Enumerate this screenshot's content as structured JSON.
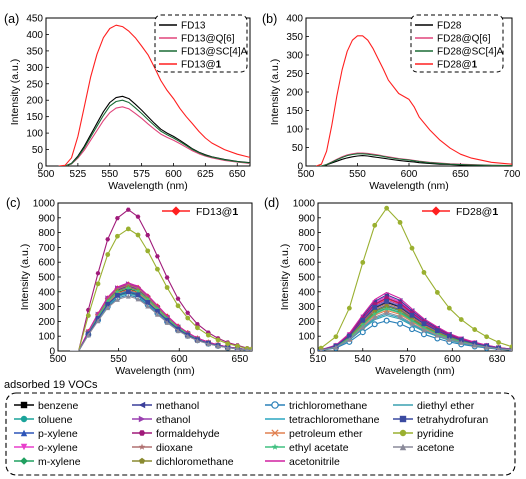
{
  "chart_data": [
    {
      "id": "a",
      "type": "line",
      "panel_label": "(a)",
      "xlabel": "Wavelength (nm)",
      "ylabel": "Intensity (a.u.)",
      "xlim": [
        500,
        660
      ],
      "ylim": [
        0,
        450
      ],
      "xticks": [
        500,
        525,
        550,
        575,
        600,
        625,
        650
      ],
      "yticks": [
        0,
        50,
        100,
        150,
        200,
        250,
        300,
        350,
        400,
        450
      ],
      "legend_position": "top-right",
      "legend_style": "dashed-box",
      "x": [
        510,
        515,
        520,
        525,
        530,
        535,
        540,
        545,
        550,
        555,
        560,
        565,
        570,
        575,
        580,
        585,
        590,
        595,
        600,
        605,
        610,
        615,
        620,
        625,
        630,
        640,
        650,
        660
      ],
      "series": [
        {
          "name": "FD13",
          "color": "#000000",
          "values": [
            0,
            0,
            8,
            30,
            60,
            95,
            130,
            165,
            193,
            208,
            212,
            205,
            188,
            170,
            150,
            130,
            112,
            100,
            90,
            78,
            65,
            52,
            42,
            34,
            28,
            20,
            14,
            10
          ]
        },
        {
          "name": "FD13@Q[6]",
          "color": "#e0457b",
          "values": [
            0,
            0,
            6,
            24,
            48,
            78,
            108,
            138,
            162,
            176,
            180,
            174,
            160,
            145,
            128,
            112,
            97,
            87,
            78,
            68,
            57,
            46,
            37,
            30,
            25,
            17,
            12,
            8
          ]
        },
        {
          "name": "FD13@SC[4]A",
          "color": "#1a6b35",
          "values": [
            0,
            0,
            7,
            27,
            55,
            88,
            121,
            154,
            182,
            196,
            200,
            193,
            177,
            160,
            141,
            123,
            106,
            95,
            85,
            74,
            62,
            50,
            40,
            32,
            27,
            19,
            13,
            9
          ]
        },
        {
          "name": "FD13@1",
          "name_suffix_bold": true,
          "color": "#ff2020",
          "values": [
            0,
            2,
            25,
            90,
            180,
            270,
            340,
            390,
            418,
            428,
            424,
            410,
            390,
            365,
            338,
            300,
            260,
            230,
            205,
            175,
            150,
            128,
            105,
            85,
            70,
            50,
            36,
            26
          ]
        }
      ]
    },
    {
      "id": "b",
      "type": "line",
      "panel_label": "(b)",
      "xlabel": "Wavelength (nm)",
      "ylabel": "Intensity (a.u.)",
      "xlim": [
        500,
        700
      ],
      "ylim": [
        0,
        400
      ],
      "xticks": [
        500,
        550,
        600,
        650,
        700
      ],
      "yticks": [
        0,
        50,
        100,
        150,
        200,
        250,
        300,
        350,
        400
      ],
      "legend_position": "top-right",
      "legend_style": "dashed-box",
      "x": [
        510,
        515,
        520,
        525,
        530,
        535,
        540,
        545,
        550,
        555,
        560,
        565,
        570,
        575,
        580,
        590,
        600,
        605,
        610,
        620,
        630,
        640,
        650,
        660,
        680,
        700
      ],
      "series": [
        {
          "name": "FD28",
          "color": "#000000",
          "values": [
            0,
            0,
            3,
            8,
            13,
            18,
            22,
            25,
            27,
            28,
            27,
            25,
            23,
            21,
            19,
            15,
            12,
            11,
            9,
            7,
            5,
            4,
            3,
            2,
            1,
            0
          ]
        },
        {
          "name": "FD28@Q[6]",
          "color": "#e0457b",
          "values": [
            0,
            0,
            4,
            11,
            18,
            25,
            30,
            33,
            35,
            35,
            34,
            32,
            30,
            27,
            25,
            20,
            17,
            15,
            13,
            10,
            8,
            6,
            5,
            4,
            2,
            1
          ]
        },
        {
          "name": "FD28@SC[4]A",
          "color": "#1a6b35",
          "values": [
            0,
            0,
            4,
            10,
            17,
            23,
            28,
            31,
            33,
            33,
            32,
            30,
            28,
            26,
            23,
            19,
            16,
            14,
            12,
            9,
            7,
            5,
            4,
            3,
            2,
            1
          ]
        },
        {
          "name": "FD28@1",
          "name_suffix_bold": true,
          "color": "#ff2020",
          "values": [
            0,
            5,
            40,
            110,
            190,
            260,
            310,
            340,
            352,
            352,
            340,
            318,
            290,
            262,
            232,
            196,
            180,
            160,
            132,
            98,
            70,
            48,
            32,
            22,
            10,
            5
          ]
        }
      ]
    },
    {
      "id": "c",
      "type": "line",
      "panel_label": "(c)",
      "xlabel": "Wavelength (nm)",
      "ylabel": "Intensity (a.u.)",
      "xlim": [
        500,
        660
      ],
      "ylim": [
        0,
        1000
      ],
      "xticks": [
        500,
        550,
        600,
        650
      ],
      "yticks": [
        0,
        100,
        200,
        300,
        400,
        500,
        600,
        700,
        800,
        900,
        1000
      ],
      "legend_position": "top-right",
      "legend": [
        {
          "name": "FD13@1",
          "name_suffix_bold": true,
          "color": "#ff2020",
          "marker": "diamond"
        }
      ],
      "x": [
        510,
        517,
        525,
        533,
        541,
        549,
        558,
        566,
        574,
        582,
        590,
        599,
        607,
        615,
        624,
        632,
        640,
        648,
        656,
        660
      ],
      "profile": [
        0,
        0,
        0.29,
        0.55,
        0.79,
        0.94,
        1.0,
        0.95,
        0.82,
        0.67,
        0.52,
        0.37,
        0.27,
        0.19,
        0.13,
        0.09,
        0.06,
        0.04,
        0.02,
        0.015
      ],
      "series": [
        {
          "name": "FD13@1",
          "color": "#ff2020",
          "marker": "diamond",
          "peak": 450
        },
        {
          "name": "benzene",
          "color": "#000000",
          "marker": "square",
          "peak": 420
        },
        {
          "name": "toluene",
          "color": "#1aa39a",
          "marker": "circle",
          "peak": 400
        },
        {
          "name": "p-xylene",
          "color": "#2d55b8",
          "marker": "triangle-up",
          "peak": 410
        },
        {
          "name": "o-xylene",
          "color": "#e83fcb",
          "marker": "triangle-down",
          "peak": 435
        },
        {
          "name": "m-xylene",
          "color": "#20a060",
          "marker": "diamond",
          "peak": 395
        },
        {
          "name": "methanol",
          "color": "#3a3e9a",
          "marker": "triangle-left",
          "peak": 440
        },
        {
          "name": "ethanol",
          "color": "#9a40b0",
          "marker": "triangle-right",
          "peak": 455
        },
        {
          "name": "formaldehyde",
          "color": "#a01a7a",
          "marker": "hexagon",
          "peak": 955
        },
        {
          "name": "dioxane",
          "color": "#b07070",
          "marker": "star",
          "peak": 445
        },
        {
          "name": "dichloromethane",
          "color": "#8a8a30",
          "marker": "pentagon",
          "peak": 430
        },
        {
          "name": "trichloromethane",
          "color": "#2a80b8",
          "marker": "circle-open",
          "peak": 380
        },
        {
          "name": "tetrachloromethane",
          "color": "#2aa6c0",
          "marker": "none",
          "peak": 405
        },
        {
          "name": "petroleum ether",
          "color": "#e08050",
          "marker": "x",
          "peak": 415
        },
        {
          "name": "ethyl acetate",
          "color": "#40c080",
          "marker": "star",
          "peak": 425
        },
        {
          "name": "acetonitrile",
          "color": "#d020a0",
          "marker": "none",
          "peak": 460
        },
        {
          "name": "diethyl ether",
          "color": "#3aa0b0",
          "marker": "none",
          "peak": 390
        },
        {
          "name": "tetrahydrofuran",
          "color": "#3a4aa0",
          "marker": "square",
          "peak": 400
        },
        {
          "name": "pyridine",
          "color": "#9ab030",
          "marker": "circle",
          "peak": 825
        },
        {
          "name": "acetone",
          "color": "#8a8a9a",
          "marker": "triangle-up",
          "peak": 370
        }
      ]
    },
    {
      "id": "d",
      "type": "line",
      "panel_label": "(d)",
      "xlabel": "Wavelength (nm)",
      "ylabel": "Intensity (a.u.)",
      "xlim": [
        510,
        640
      ],
      "ylim": [
        0,
        1000
      ],
      "xticks": [
        510,
        540,
        570,
        600,
        630
      ],
      "yticks": [
        0,
        100,
        200,
        300,
        400,
        500,
        600,
        700,
        800,
        900,
        1000
      ],
      "legend_position": "top-right",
      "legend": [
        {
          "name": "FD28@1",
          "name_suffix_bold": true,
          "color": "#ff2020",
          "marker": "diamond"
        }
      ],
      "x": [
        512,
        522,
        531,
        540,
        548,
        556,
        565,
        573,
        581,
        590,
        598,
        606,
        615,
        623,
        631,
        640
      ],
      "profile": [
        0.02,
        0.1,
        0.3,
        0.62,
        0.88,
        1.0,
        0.9,
        0.72,
        0.55,
        0.41,
        0.3,
        0.22,
        0.15,
        0.1,
        0.06,
        0.03
      ],
      "series": [
        {
          "name": "FD28@1",
          "color": "#ff2020",
          "marker": "diamond",
          "peak": 355
        },
        {
          "name": "benzene",
          "color": "#000000",
          "marker": "square",
          "peak": 330
        },
        {
          "name": "toluene",
          "color": "#1aa39a",
          "marker": "circle",
          "peak": 300
        },
        {
          "name": "p-xylene",
          "color": "#2d55b8",
          "marker": "triangle-up",
          "peak": 310
        },
        {
          "name": "o-xylene",
          "color": "#e83fcb",
          "marker": "triangle-down",
          "peak": 370
        },
        {
          "name": "m-xylene",
          "color": "#20a060",
          "marker": "diamond",
          "peak": 290
        },
        {
          "name": "methanol",
          "color": "#3a3e9a",
          "marker": "triangle-left",
          "peak": 380
        },
        {
          "name": "ethanol",
          "color": "#9a40b0",
          "marker": "triangle-right",
          "peak": 345
        },
        {
          "name": "formaldehyde",
          "color": "#a01a7a",
          "marker": "hexagon",
          "peak": 360
        },
        {
          "name": "dioxane",
          "color": "#b07070",
          "marker": "star",
          "peak": 320
        },
        {
          "name": "dichloromethane",
          "color": "#8a8a30",
          "marker": "pentagon",
          "peak": 305
        },
        {
          "name": "trichloromethane",
          "color": "#2a80b8",
          "marker": "circle-open",
          "peak": 205
        },
        {
          "name": "tetrachloromethane",
          "color": "#2aa6c0",
          "marker": "none",
          "peak": 250
        },
        {
          "name": "petroleum ether",
          "color": "#e08050",
          "marker": "x",
          "peak": 275
        },
        {
          "name": "ethyl acetate",
          "color": "#40c080",
          "marker": "star",
          "peak": 285
        },
        {
          "name": "acetonitrile",
          "color": "#d020a0",
          "marker": "none",
          "peak": 395
        },
        {
          "name": "diethyl ether",
          "color": "#3aa0b0",
          "marker": "none",
          "peak": 240
        },
        {
          "name": "tetrahydrofuran",
          "color": "#3a4aa0",
          "marker": "square",
          "peak": 335
        },
        {
          "name": "pyridine",
          "color": "#9ab030",
          "marker": "circle",
          "peak": 965
        },
        {
          "name": "acetone",
          "color": "#8a8a9a",
          "marker": "triangle-up",
          "peak": 260
        }
      ]
    }
  ],
  "voc_legend": {
    "title": "adsorbed 19 VOCs",
    "items": [
      {
        "name": "benzene",
        "color": "#000000",
        "marker": "square"
      },
      {
        "name": "toluene",
        "color": "#1aa39a",
        "marker": "circle"
      },
      {
        "name": "p-xylene",
        "color": "#2d55b8",
        "marker": "triangle-up"
      },
      {
        "name": "o-xylene",
        "color": "#e83fcb",
        "marker": "triangle-down"
      },
      {
        "name": "m-xylene",
        "color": "#20a060",
        "marker": "diamond"
      },
      {
        "name": "methanol",
        "color": "#3a3e9a",
        "marker": "triangle-left"
      },
      {
        "name": "ethanol",
        "color": "#9a40b0",
        "marker": "triangle-right"
      },
      {
        "name": "formaldehyde",
        "color": "#a01a7a",
        "marker": "hexagon"
      },
      {
        "name": "dioxane",
        "color": "#b07070",
        "marker": "star"
      },
      {
        "name": "dichloromethane",
        "color": "#8a8a30",
        "marker": "pentagon"
      },
      {
        "name": "trichloromethane",
        "color": "#2a80b8",
        "marker": "circle-open"
      },
      {
        "name": "tetrachloromethane",
        "color": "#2aa6c0",
        "marker": "none"
      },
      {
        "name": "petroleum ether",
        "color": "#e08050",
        "marker": "x"
      },
      {
        "name": "ethyl acetate",
        "color": "#40c080",
        "marker": "star"
      },
      {
        "name": "acetonitrile",
        "color": "#d020a0",
        "marker": "none"
      },
      {
        "name": "diethyl ether",
        "color": "#3aa0b0",
        "marker": "none"
      },
      {
        "name": "tetrahydrofuran",
        "color": "#3a4aa0",
        "marker": "square"
      },
      {
        "name": "pyridine",
        "color": "#9ab030",
        "marker": "circle"
      },
      {
        "name": "acetone",
        "color": "#8a8a9a",
        "marker": "triangle-up"
      }
    ]
  }
}
